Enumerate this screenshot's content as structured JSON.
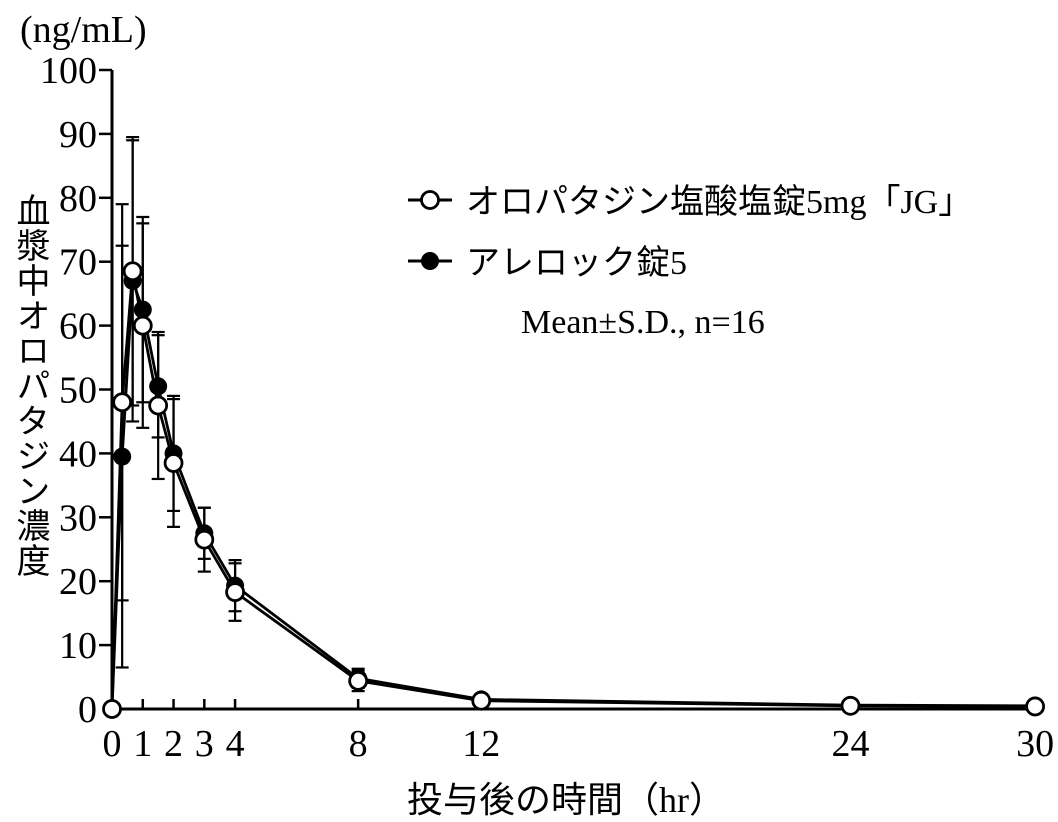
{
  "figure": {
    "y_unit_label": "(ng/mL)",
    "y_axis_title": "血漿中オロパタジン濃度",
    "x_axis_title": "投与後の時間（hr）",
    "legend": {
      "series1_label": "オロパタジン塩酸塩錠5mg「JG」",
      "series2_label": "アレロック錠5",
      "note": "Mean±S.D., n=16"
    }
  },
  "colors": {
    "foreground": "#000000",
    "background": "#ffffff"
  },
  "chart_data": {
    "type": "line",
    "title": "",
    "xlabel": "投与後の時間（hr）",
    "ylabel": "血漿中オロパタジン濃度 (ng/mL)",
    "xlim": [
      0,
      30
    ],
    "ylim": [
      0,
      100
    ],
    "x_ticks": [
      0,
      1,
      2,
      3,
      4,
      8,
      12,
      24,
      30
    ],
    "y_ticks": [
      0,
      10,
      20,
      30,
      40,
      50,
      60,
      70,
      80,
      90,
      100
    ],
    "grid": false,
    "legend_position": "upper center-right",
    "annotation": "Mean±S.D., n=16",
    "x": [
      0,
      0.33,
      0.67,
      1,
      1.5,
      2,
      3,
      4,
      8,
      12,
      24,
      30
    ],
    "series": [
      {
        "name": "オロパタジン塩酸塩錠5mg「JG」",
        "marker": "open-circle",
        "values": [
          0,
          48,
          68.5,
          60,
          47.5,
          38.5,
          26.5,
          18.3,
          4.4,
          1.3,
          0.5,
          0.4
        ],
        "sd": [
          0,
          31,
          21,
          16,
          11.5,
          10,
          5,
          4.5,
          1.6,
          0,
          0,
          0
        ]
      },
      {
        "name": "アレロック錠5",
        "marker": "filled-circle",
        "values": [
          0,
          39.5,
          67,
          62.5,
          50.5,
          40,
          27.5,
          19.3,
          4.8,
          1.5,
          0.6,
          0.5
        ],
        "sd": [
          0,
          33,
          22,
          14.5,
          8,
          9,
          4,
          4,
          1.5,
          0,
          0,
          0
        ]
      }
    ]
  }
}
